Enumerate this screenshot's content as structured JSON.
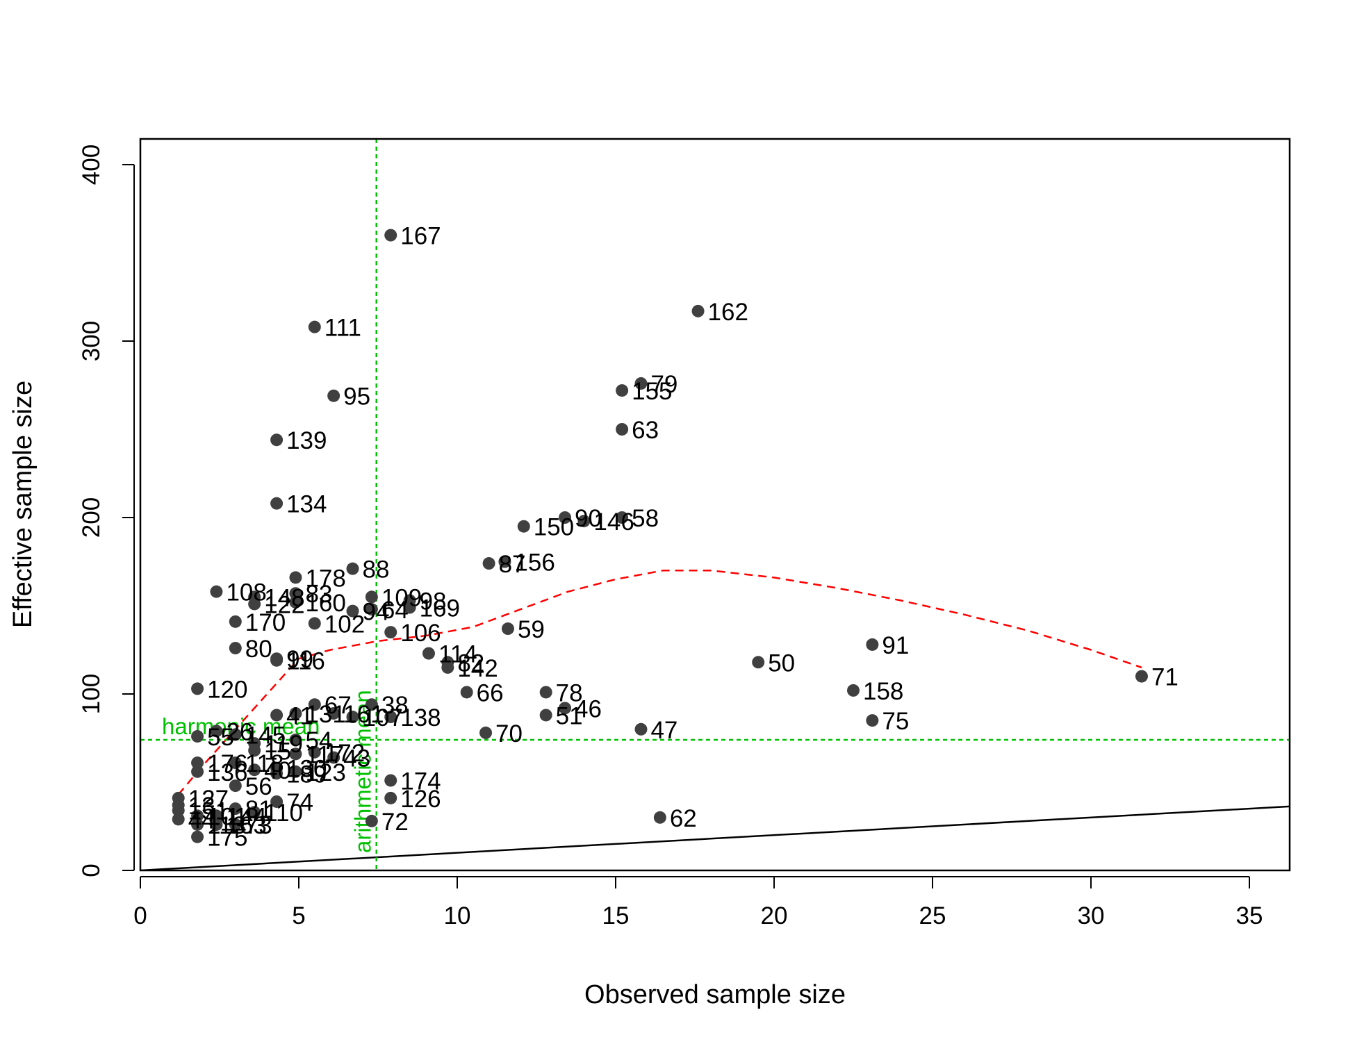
{
  "chart_data": {
    "type": "scatter",
    "title": "",
    "xlabel": "Observed sample size",
    "ylabel": "Effective sample size",
    "xlim": [
      0,
      36.4
    ],
    "ylim": [
      0,
      415
    ],
    "xticks": [
      0,
      5,
      10,
      15,
      20,
      25,
      30,
      35
    ],
    "yticks": [
      0,
      100,
      200,
      300,
      400
    ],
    "grid": false,
    "legend": "none",
    "colors": {
      "points": "#404040",
      "smooth_line": "#ff0000",
      "reference_lines": "#00c000",
      "identity_line": "#000000"
    },
    "reference_lines": {
      "harmonic_mean": {
        "label": "harmonic mean",
        "y": 74
      },
      "arithmetic_mean": {
        "label": "arithmetic mean",
        "x": 7.45
      }
    },
    "identity_line": {
      "x": [
        0,
        36.4
      ],
      "y": [
        0,
        36.4
      ]
    },
    "smooth_line": {
      "x": [
        1.2,
        2.0,
        3.0,
        4.0,
        5.0,
        6.0,
        7.5,
        9.0,
        10.5,
        12.0,
        13.5,
        15.0,
        16.5,
        18.0,
        20.0,
        22.0,
        24.0,
        26.0,
        28.0,
        30.0,
        31.6
      ],
      "y": [
        43,
        60,
        80,
        100,
        120,
        125,
        130,
        133,
        138,
        148,
        158,
        165,
        170,
        170,
        166,
        160,
        153,
        145,
        136,
        125,
        115
      ]
    },
    "points": [
      {
        "label": "167",
        "x": 7.9,
        "y": 360
      },
      {
        "label": "162",
        "x": 17.6,
        "y": 317
      },
      {
        "label": "111",
        "x": 5.5,
        "y": 308
      },
      {
        "label": "95",
        "x": 6.1,
        "y": 269
      },
      {
        "label": "79",
        "x": 15.8,
        "y": 276
      },
      {
        "label": "155",
        "x": 15.2,
        "y": 272
      },
      {
        "label": "63",
        "x": 15.2,
        "y": 250
      },
      {
        "label": "139",
        "x": 4.3,
        "y": 244
      },
      {
        "label": "134",
        "x": 4.3,
        "y": 208
      },
      {
        "label": "90",
        "x": 13.4,
        "y": 200
      },
      {
        "label": "146",
        "x": 14.0,
        "y": 198
      },
      {
        "label": "58",
        "x": 15.2,
        "y": 200
      },
      {
        "label": "150",
        "x": 12.1,
        "y": 195
      },
      {
        "label": "87",
        "x": 11.0,
        "y": 174
      },
      {
        "label": "156",
        "x": 11.5,
        "y": 175
      },
      {
        "label": "88",
        "x": 6.7,
        "y": 171
      },
      {
        "label": "178",
        "x": 4.9,
        "y": 166
      },
      {
        "label": "108",
        "x": 2.4,
        "y": 158
      },
      {
        "label": "148",
        "x": 3.6,
        "y": 155
      },
      {
        "label": "83",
        "x": 4.9,
        "y": 157
      },
      {
        "label": "122",
        "x": 3.6,
        "y": 151
      },
      {
        "label": "160",
        "x": 4.9,
        "y": 152
      },
      {
        "label": "109",
        "x": 7.3,
        "y": 155
      },
      {
        "label": "98",
        "x": 8.5,
        "y": 153
      },
      {
        "label": "94",
        "x": 6.7,
        "y": 147
      },
      {
        "label": "64",
        "x": 7.3,
        "y": 148
      },
      {
        "label": "169",
        "x": 8.5,
        "y": 149
      },
      {
        "label": "170",
        "x": 3.0,
        "y": 141
      },
      {
        "label": "102",
        "x": 5.5,
        "y": 140
      },
      {
        "label": "106",
        "x": 7.9,
        "y": 135
      },
      {
        "label": "59",
        "x": 11.6,
        "y": 137
      },
      {
        "label": "80",
        "x": 3.0,
        "y": 126
      },
      {
        "label": "91",
        "x": 23.1,
        "y": 128
      },
      {
        "label": "99",
        "x": 4.3,
        "y": 120
      },
      {
        "label": "116",
        "x": 4.3,
        "y": 119
      },
      {
        "label": "114",
        "x": 9.1,
        "y": 123
      },
      {
        "label": "82",
        "x": 9.7,
        "y": 118
      },
      {
        "label": "142",
        "x": 9.7,
        "y": 115
      },
      {
        "label": "50",
        "x": 19.5,
        "y": 118
      },
      {
        "label": "71",
        "x": 31.6,
        "y": 110
      },
      {
        "label": "120",
        "x": 1.8,
        "y": 103
      },
      {
        "label": "66",
        "x": 10.3,
        "y": 101
      },
      {
        "label": "78",
        "x": 12.8,
        "y": 101
      },
      {
        "label": "158",
        "x": 22.5,
        "y": 102
      },
      {
        "label": "46",
        "x": 13.4,
        "y": 92
      },
      {
        "label": "51",
        "x": 12.8,
        "y": 88
      },
      {
        "label": "75",
        "x": 23.1,
        "y": 85
      },
      {
        "label": "47",
        "x": 15.8,
        "y": 80
      },
      {
        "label": "67",
        "x": 5.5,
        "y": 94
      },
      {
        "label": "38",
        "x": 7.3,
        "y": 94
      },
      {
        "label": "138",
        "x": 7.9,
        "y": 87
      },
      {
        "label": "41",
        "x": 4.3,
        "y": 88
      },
      {
        "label": "131",
        "x": 4.9,
        "y": 89
      },
      {
        "label": "161",
        "x": 6.1,
        "y": 89
      },
      {
        "label": "107",
        "x": 6.7,
        "y": 87
      },
      {
        "label": "70",
        "x": 10.9,
        "y": 78
      },
      {
        "label": "55",
        "x": 1.8,
        "y": 76
      },
      {
        "label": "26",
        "x": 2.4,
        "y": 79
      },
      {
        "label": "145",
        "x": 3.0,
        "y": 77
      },
      {
        "label": "119",
        "x": 3.6,
        "y": 72
      },
      {
        "label": "54",
        "x": 4.9,
        "y": 74
      },
      {
        "label": "15",
        "x": 3.6,
        "y": 68
      },
      {
        "label": "117",
        "x": 4.9,
        "y": 66
      },
      {
        "label": "172",
        "x": 5.5,
        "y": 67
      },
      {
        "label": "43",
        "x": 6.1,
        "y": 64
      },
      {
        "label": "176",
        "x": 1.8,
        "y": 61
      },
      {
        "label": "118",
        "x": 3.0,
        "y": 61
      },
      {
        "label": "136",
        "x": 1.8,
        "y": 56
      },
      {
        "label": "40",
        "x": 3.6,
        "y": 57
      },
      {
        "label": "130",
        "x": 4.3,
        "y": 58
      },
      {
        "label": "123",
        "x": 4.9,
        "y": 56
      },
      {
        "label": "189",
        "x": 4.3,
        "y": 55
      },
      {
        "label": "56",
        "x": 3.0,
        "y": 48
      },
      {
        "label": "174",
        "x": 7.9,
        "y": 51
      },
      {
        "label": "126",
        "x": 7.9,
        "y": 41
      },
      {
        "label": "74",
        "x": 4.3,
        "y": 39
      },
      {
        "label": "127",
        "x": 1.2,
        "y": 41
      },
      {
        "label": "13",
        "x": 1.2,
        "y": 37
      },
      {
        "label": "151",
        "x": 1.2,
        "y": 34
      },
      {
        "label": "44",
        "x": 1.2,
        "y": 29
      },
      {
        "label": "101",
        "x": 1.8,
        "y": 31
      },
      {
        "label": "113",
        "x": 1.8,
        "y": 26
      },
      {
        "label": "144",
        "x": 2.4,
        "y": 31
      },
      {
        "label": "81",
        "x": 3.0,
        "y": 35
      },
      {
        "label": "110",
        "x": 3.6,
        "y": 33
      },
      {
        "label": "163",
        "x": 2.4,
        "y": 26
      },
      {
        "label": "73",
        "x": 3.0,
        "y": 26
      },
      {
        "label": "72",
        "x": 7.3,
        "y": 28
      },
      {
        "label": "62",
        "x": 16.4,
        "y": 30
      },
      {
        "label": "175",
        "x": 1.8,
        "y": 19
      }
    ]
  }
}
